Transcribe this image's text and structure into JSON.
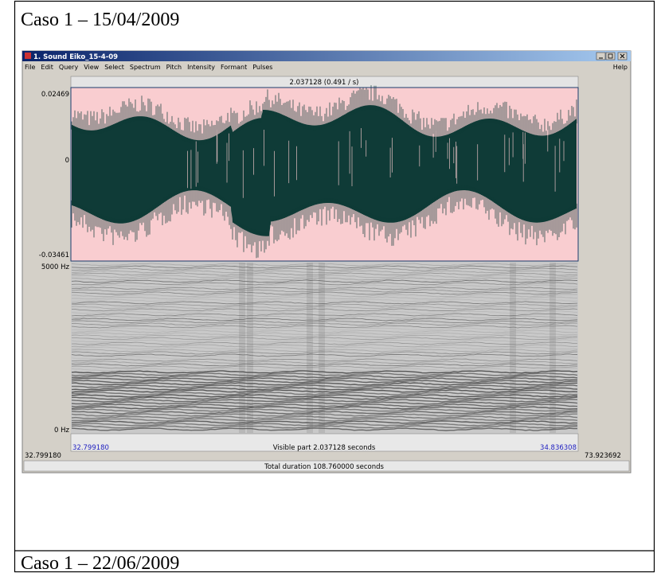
{
  "document": {
    "case_1_title": "Caso 1 – 15/04/2009",
    "case_2_title": "Caso 1 – 22/06/2009"
  },
  "window": {
    "title": "1. Sound Eiko_15-4-09",
    "menu": [
      "File",
      "Edit",
      "Query",
      "View",
      "Select",
      "Spectrum",
      "Pitch",
      "Intensity",
      "Formant",
      "Pulses"
    ],
    "help": "Help",
    "selection_label": "2.037128 (0.491 / s)",
    "waveform": {
      "max_label": "0.02469",
      "zero_label": "0",
      "min_label": "-0.03461"
    },
    "spectrogram": {
      "top_label": "5000 Hz",
      "bottom_label": "0 Hz"
    },
    "visible_start": "32.799180",
    "visible_end": "34.836308",
    "visible_part": "Visible part 2.037128 seconds",
    "window_start": "32.799180",
    "window_end": "73.923692",
    "total_duration": "Total duration 108.760000 seconds"
  }
}
